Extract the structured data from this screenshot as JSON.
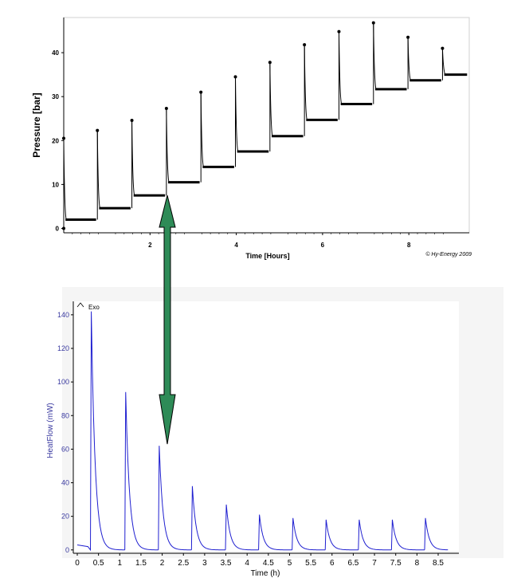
{
  "chart_data": [
    {
      "type": "line",
      "xlabel": "Time [Hours]",
      "ylabel": "Pressure [bar]",
      "xlim": [
        0,
        9.4
      ],
      "ylim": [
        -1,
        48
      ],
      "x_ticks": [
        "2",
        "4",
        "6",
        "8"
      ],
      "y_ticks": [
        "0",
        "10",
        "20",
        "30",
        "40"
      ],
      "grid": false,
      "credit": "© Hy-Energy 2009",
      "series": [
        {
          "pulses": [
            {
              "t_start": 0.0,
              "peak": 20.5,
              "t_end": 0.75,
              "plateau": 2.0
            },
            {
              "t_start": 0.78,
              "peak": 22.3,
              "t_end": 1.55,
              "plateau": 4.6
            },
            {
              "t_start": 1.58,
              "peak": 24.6,
              "t_end": 2.35,
              "plateau": 7.5
            },
            {
              "t_start": 2.38,
              "peak": 27.3,
              "t_end": 3.15,
              "plateau": 10.5
            },
            {
              "t_start": 3.18,
              "peak": 31.0,
              "t_end": 3.95,
              "plateau": 14.0
            },
            {
              "t_start": 3.98,
              "peak": 34.5,
              "t_end": 4.75,
              "plateau": 17.5
            },
            {
              "t_start": 4.78,
              "peak": 37.8,
              "t_end": 5.55,
              "plateau": 21.0
            },
            {
              "t_start": 5.58,
              "peak": 41.8,
              "t_end": 6.35,
              "plateau": 24.7
            },
            {
              "t_start": 6.38,
              "peak": 44.8,
              "t_end": 7.15,
              "plateau": 28.3
            },
            {
              "t_start": 7.18,
              "peak": 46.8,
              "t_end": 7.95,
              "plateau": 31.7
            },
            {
              "t_start": 7.98,
              "peak": 43.5,
              "t_end": 8.75,
              "plateau": 33.7
            },
            {
              "t_start": 8.78,
              "peak": 41.0,
              "t_end": 9.35,
              "plateau": 35.0
            }
          ]
        }
      ]
    },
    {
      "type": "line",
      "xlabel": "Time (h)",
      "ylabel": "HeatFlow (mW)",
      "legend_label": "Exo",
      "xlim": [
        0,
        8.8
      ],
      "ylim": [
        -2,
        148
      ],
      "x_ticks": [
        "0",
        "0.5",
        "1",
        "1.5",
        "2",
        "2.5",
        "3",
        "3.5",
        "4",
        "4.5",
        "5",
        "5.5",
        "6",
        "6.5",
        "7",
        "7.5",
        "8",
        "8.5"
      ],
      "y_ticks": [
        "0",
        "20",
        "40",
        "60",
        "80",
        "100",
        "120",
        "140"
      ],
      "grid": false,
      "color": "#1f1fd0",
      "baseline": 3,
      "series": [
        {
          "peaks": [
            {
              "t": 0.33,
              "value": 142
            },
            {
              "t": 1.14,
              "value": 94
            },
            {
              "t": 1.93,
              "value": 62
            },
            {
              "t": 2.71,
              "value": 38
            },
            {
              "t": 3.51,
              "value": 27
            },
            {
              "t": 4.29,
              "value": 21
            },
            {
              "t": 5.08,
              "value": 19
            },
            {
              "t": 5.86,
              "value": 18
            },
            {
              "t": 6.64,
              "value": 18
            },
            {
              "t": 7.42,
              "value": 18
            },
            {
              "t": 8.2,
              "value": 19
            }
          ]
        }
      ]
    }
  ],
  "arrow": {
    "color": "#2e8b57",
    "meaning": "links pressure step 3 to heat flow peak 3"
  }
}
